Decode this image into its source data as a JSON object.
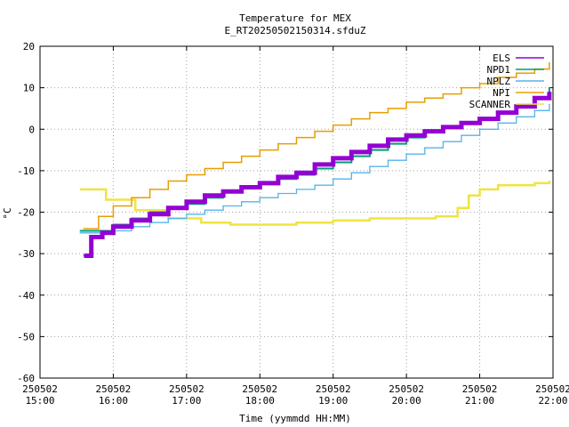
{
  "chart_data": {
    "type": "line",
    "title": "Temperature for MEX",
    "subtitle": "E_RT20250502150314.sfduZ",
    "xlabel": "Time (yymmdd HH:MM)",
    "ylabel": "°C",
    "ylim": [
      -60,
      20
    ],
    "yticks": [
      -60,
      -50,
      -40,
      -30,
      -20,
      -10,
      0,
      10,
      20
    ],
    "xlim": [
      "250502 15:00",
      "250502 22:00"
    ],
    "xtick_labels": [
      {
        "date": "250502",
        "time": "15:00"
      },
      {
        "date": "250502",
        "time": "16:00"
      },
      {
        "date": "250502",
        "time": "17:00"
      },
      {
        "date": "250502",
        "time": "18:00"
      },
      {
        "date": "250502",
        "time": "19:00"
      },
      {
        "date": "250502",
        "time": "20:00"
      },
      {
        "date": "250502",
        "time": "21:00"
      },
      {
        "date": "250502",
        "time": "22:00"
      }
    ],
    "grid": true,
    "legend_position": "top-right",
    "series": [
      {
        "name": "ELS",
        "color": "#9400d3",
        "x": [
          15.6,
          15.7,
          15.85,
          16.0,
          16.25,
          16.5,
          16.75,
          17.0,
          17.25,
          17.5,
          17.75,
          18.0,
          18.25,
          18.5,
          18.75,
          19.0,
          19.25,
          19.5,
          19.75,
          20.0,
          20.25,
          20.5,
          20.75,
          21.0,
          21.25,
          21.5,
          21.75,
          21.95
        ],
        "y": [
          -30.5,
          -26,
          -25,
          -23.5,
          -22,
          -20.5,
          -19,
          -17.5,
          -16,
          -15,
          -14,
          -13,
          -11.5,
          -10.5,
          -8.5,
          -7,
          -5.5,
          -4,
          -2.5,
          -1.5,
          -0.5,
          0.5,
          1.5,
          2.5,
          4,
          5.5,
          7.5,
          9
        ]
      },
      {
        "name": "NPD1",
        "color": "#009e73",
        "x": [
          15.55,
          15.75,
          16.0,
          16.25,
          16.5,
          16.75,
          17.0,
          17.25,
          17.5,
          17.75,
          18.0,
          18.25,
          18.5,
          18.75,
          19.0,
          19.25,
          19.5,
          19.75,
          20.0,
          20.25,
          20.5,
          20.75,
          21.0,
          21.25,
          21.5,
          21.75,
          21.95
        ],
        "y": [
          -24.5,
          -24.5,
          -23,
          -21.5,
          -20,
          -19,
          -18,
          -16.5,
          -15,
          -14,
          -13,
          -12,
          -11,
          -9.5,
          -8,
          -6.5,
          -5,
          -3.5,
          -2,
          -0.5,
          0.5,
          1.5,
          2.5,
          4,
          5.5,
          7.5,
          10
        ]
      },
      {
        "name": "NPLZ",
        "color": "#56b4e9",
        "x": [
          15.55,
          15.75,
          16.0,
          16.25,
          16.5,
          16.75,
          17.0,
          17.25,
          17.5,
          17.75,
          18.0,
          18.25,
          18.5,
          18.75,
          19.0,
          19.25,
          19.5,
          19.75,
          20.0,
          20.25,
          20.5,
          20.75,
          21.0,
          21.25,
          21.5,
          21.75,
          21.95
        ],
        "y": [
          -25,
          -25,
          -24.5,
          -23.5,
          -22.5,
          -21.5,
          -20.5,
          -19.5,
          -18.5,
          -17.5,
          -16.5,
          -15.5,
          -14.5,
          -13.5,
          -12,
          -10.5,
          -9,
          -7.5,
          -6,
          -4.5,
          -3,
          -1.5,
          0,
          1.5,
          3,
          4.5,
          6
        ]
      },
      {
        "name": "NPI",
        "color": "#e69f00",
        "x": [
          15.6,
          15.8,
          16.0,
          16.25,
          16.5,
          16.75,
          17.0,
          17.25,
          17.5,
          17.75,
          18.0,
          18.25,
          18.5,
          18.75,
          19.0,
          19.25,
          19.5,
          19.75,
          20.0,
          20.25,
          20.5,
          20.75,
          21.0,
          21.25,
          21.5,
          21.75,
          21.95
        ],
        "y": [
          -24,
          -21,
          -18.5,
          -16.5,
          -14.5,
          -12.5,
          -11,
          -9.5,
          -8,
          -6.5,
          -5,
          -3.5,
          -2,
          -0.5,
          1,
          2.5,
          4,
          5,
          6.5,
          7.5,
          8.5,
          10,
          11,
          12.5,
          13.5,
          14.5,
          16
        ]
      },
      {
        "name": "SCANNER",
        "color": "#f0e442",
        "x": [
          15.55,
          15.9,
          16.3,
          16.75,
          17.2,
          17.6,
          18.0,
          18.5,
          19.0,
          19.5,
          20.0,
          20.4,
          20.7,
          20.85,
          21.0,
          21.25,
          21.5,
          21.75,
          21.95
        ],
        "y": [
          -14.5,
          -17,
          -19.5,
          -21.5,
          -22.5,
          -23,
          -23,
          -22.5,
          -22,
          -21.5,
          -21.5,
          -21,
          -19,
          -16,
          -14.5,
          -13.5,
          -13.5,
          -13,
          -12.5
        ]
      }
    ]
  }
}
